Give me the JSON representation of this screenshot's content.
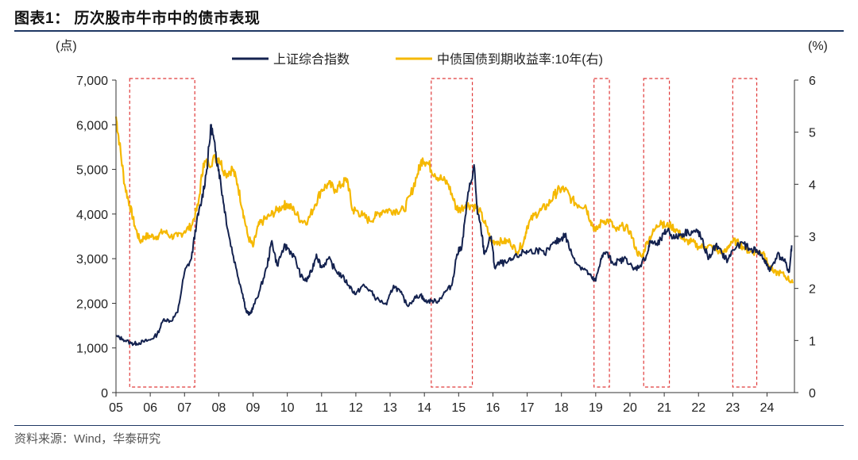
{
  "header": {
    "title": "图表1：  历次股市牛市中的债市表现"
  },
  "footer": {
    "source": "资料来源：Wind，华泰研究"
  },
  "colors": {
    "navy": "#14224f",
    "gold": "#f5b800",
    "box": "#e03a3a",
    "axis": "#333333"
  },
  "chart_data": {
    "type": "line",
    "left_unit_label": "(点)",
    "right_unit_label": "(%)",
    "legend": [
      "上证综合指数",
      "中债国债到期收益率:10年(右)"
    ],
    "x_tick_labels": [
      "05",
      "06",
      "07",
      "08",
      "09",
      "10",
      "11",
      "12",
      "13",
      "14",
      "15",
      "16",
      "17",
      "18",
      "19",
      "20",
      "21",
      "22",
      "23",
      "24"
    ],
    "x_range": [
      2005,
      2024.8
    ],
    "y_left": {
      "min": 0,
      "max": 7000,
      "ticks": [
        0,
        1000,
        2000,
        3000,
        4000,
        5000,
        6000,
        7000
      ],
      "tick_labels": [
        "0",
        "1,000",
        "2,000",
        "3,000",
        "4,000",
        "5,000",
        "6,000",
        "7,000"
      ]
    },
    "y_right": {
      "min": 0,
      "max": 6,
      "ticks": [
        0,
        1,
        2,
        3,
        4,
        5,
        6
      ],
      "tick_labels": [
        "0",
        "1",
        "2",
        "3",
        "4",
        "5",
        "6"
      ]
    },
    "series": [
      {
        "name": "上证综合指数",
        "axis": "left",
        "points": [
          [
            2005.0,
            1260
          ],
          [
            2005.2,
            1200
          ],
          [
            2005.45,
            1100
          ],
          [
            2005.6,
            1100
          ],
          [
            2005.8,
            1140
          ],
          [
            2006.0,
            1180
          ],
          [
            2006.2,
            1300
          ],
          [
            2006.4,
            1650
          ],
          [
            2006.6,
            1600
          ],
          [
            2006.8,
            1800
          ],
          [
            2007.0,
            2700
          ],
          [
            2007.2,
            3000
          ],
          [
            2007.35,
            3800
          ],
          [
            2007.5,
            4300
          ],
          [
            2007.65,
            5000
          ],
          [
            2007.78,
            6000
          ],
          [
            2007.9,
            5400
          ],
          [
            2008.0,
            5000
          ],
          [
            2008.15,
            4200
          ],
          [
            2008.3,
            3500
          ],
          [
            2008.5,
            2800
          ],
          [
            2008.7,
            2200
          ],
          [
            2008.8,
            1820
          ],
          [
            2008.9,
            1750
          ],
          [
            2009.0,
            1900
          ],
          [
            2009.2,
            2300
          ],
          [
            2009.4,
            2800
          ],
          [
            2009.55,
            3400
          ],
          [
            2009.7,
            2850
          ],
          [
            2009.9,
            3250
          ],
          [
            2010.0,
            3250
          ],
          [
            2010.2,
            3050
          ],
          [
            2010.4,
            2600
          ],
          [
            2010.55,
            2500
          ],
          [
            2010.7,
            2700
          ],
          [
            2010.85,
            3100
          ],
          [
            2011.0,
            2800
          ],
          [
            2011.2,
            3000
          ],
          [
            2011.4,
            2750
          ],
          [
            2011.6,
            2600
          ],
          [
            2011.8,
            2400
          ],
          [
            2012.0,
            2200
          ],
          [
            2012.2,
            2400
          ],
          [
            2012.4,
            2300
          ],
          [
            2012.6,
            2100
          ],
          [
            2012.9,
            1970
          ],
          [
            2013.1,
            2400
          ],
          [
            2013.3,
            2250
          ],
          [
            2013.5,
            1950
          ],
          [
            2013.7,
            2100
          ],
          [
            2013.9,
            2200
          ],
          [
            2014.0,
            2050
          ],
          [
            2014.2,
            2050
          ],
          [
            2014.4,
            2050
          ],
          [
            2014.6,
            2250
          ],
          [
            2014.8,
            2400
          ],
          [
            2014.95,
            3100
          ],
          [
            2015.1,
            3300
          ],
          [
            2015.25,
            4300
          ],
          [
            2015.45,
            5100
          ],
          [
            2015.55,
            4000
          ],
          [
            2015.65,
            3700
          ],
          [
            2015.75,
            3100
          ],
          [
            2015.95,
            3500
          ],
          [
            2016.05,
            2800
          ],
          [
            2016.2,
            2900
          ],
          [
            2016.4,
            2900
          ],
          [
            2016.6,
            3000
          ],
          [
            2016.9,
            3150
          ],
          [
            2017.0,
            3150
          ],
          [
            2017.3,
            3200
          ],
          [
            2017.5,
            3100
          ],
          [
            2017.8,
            3350
          ],
          [
            2018.0,
            3450
          ],
          [
            2018.1,
            3550
          ],
          [
            2018.3,
            3100
          ],
          [
            2018.5,
            2850
          ],
          [
            2018.7,
            2750
          ],
          [
            2018.9,
            2550
          ],
          [
            2019.0,
            2500
          ],
          [
            2019.15,
            3000
          ],
          [
            2019.3,
            3150
          ],
          [
            2019.5,
            2900
          ],
          [
            2019.7,
            2950
          ],
          [
            2019.9,
            3000
          ],
          [
            2020.1,
            2750
          ],
          [
            2020.3,
            2850
          ],
          [
            2020.5,
            3100
          ],
          [
            2020.6,
            3400
          ],
          [
            2020.8,
            3300
          ],
          [
            2021.0,
            3550
          ],
          [
            2021.1,
            3650
          ],
          [
            2021.3,
            3450
          ],
          [
            2021.5,
            3550
          ],
          [
            2021.7,
            3600
          ],
          [
            2021.9,
            3600
          ],
          [
            2022.0,
            3600
          ],
          [
            2022.15,
            3300
          ],
          [
            2022.3,
            3000
          ],
          [
            2022.5,
            3300
          ],
          [
            2022.7,
            3100
          ],
          [
            2022.85,
            2950
          ],
          [
            2023.0,
            3200
          ],
          [
            2023.3,
            3350
          ],
          [
            2023.5,
            3200
          ],
          [
            2023.7,
            3200
          ],
          [
            2023.9,
            3000
          ],
          [
            2024.0,
            2850
          ],
          [
            2024.1,
            2750
          ],
          [
            2024.3,
            3100
          ],
          [
            2024.5,
            2950
          ],
          [
            2024.65,
            2700
          ],
          [
            2024.72,
            3300
          ]
        ]
      },
      {
        "name": "中债国债到期收益率:10年(右)",
        "axis": "right",
        "points": [
          [
            2005.0,
            5.3
          ],
          [
            2005.1,
            4.8
          ],
          [
            2005.25,
            4.0
          ],
          [
            2005.4,
            3.6
          ],
          [
            2005.55,
            3.2
          ],
          [
            2005.7,
            2.9
          ],
          [
            2005.85,
            3.0
          ],
          [
            2006.0,
            3.0
          ],
          [
            2006.2,
            3.0
          ],
          [
            2006.4,
            3.1
          ],
          [
            2006.6,
            3.0
          ],
          [
            2006.8,
            3.0
          ],
          [
            2007.0,
            3.1
          ],
          [
            2007.2,
            3.2
          ],
          [
            2007.4,
            3.6
          ],
          [
            2007.55,
            4.4
          ],
          [
            2007.7,
            4.4
          ],
          [
            2007.9,
            4.5
          ],
          [
            2008.0,
            4.5
          ],
          [
            2008.2,
            4.2
          ],
          [
            2008.4,
            4.3
          ],
          [
            2008.55,
            4.0
          ],
          [
            2008.7,
            3.5
          ],
          [
            2008.85,
            3.0
          ],
          [
            2009.0,
            2.8
          ],
          [
            2009.15,
            3.2
          ],
          [
            2009.3,
            3.3
          ],
          [
            2009.5,
            3.4
          ],
          [
            2009.7,
            3.5
          ],
          [
            2009.9,
            3.6
          ],
          [
            2010.0,
            3.6
          ],
          [
            2010.2,
            3.5
          ],
          [
            2010.4,
            3.3
          ],
          [
            2010.6,
            3.3
          ],
          [
            2010.8,
            3.6
          ],
          [
            2011.0,
            3.9
          ],
          [
            2011.2,
            4.0
          ],
          [
            2011.4,
            3.9
          ],
          [
            2011.6,
            4.0
          ],
          [
            2011.75,
            4.1
          ],
          [
            2011.9,
            3.5
          ],
          [
            2012.0,
            3.5
          ],
          [
            2012.2,
            3.4
          ],
          [
            2012.4,
            3.3
          ],
          [
            2012.6,
            3.4
          ],
          [
            2012.8,
            3.5
          ],
          [
            2013.0,
            3.5
          ],
          [
            2013.2,
            3.5
          ],
          [
            2013.4,
            3.5
          ],
          [
            2013.6,
            3.8
          ],
          [
            2013.8,
            4.2
          ],
          [
            2013.95,
            4.5
          ],
          [
            2014.1,
            4.4
          ],
          [
            2014.3,
            4.2
          ],
          [
            2014.5,
            4.1
          ],
          [
            2014.7,
            4.0
          ],
          [
            2014.9,
            3.6
          ],
          [
            2015.0,
            3.5
          ],
          [
            2015.2,
            3.6
          ],
          [
            2015.4,
            3.6
          ],
          [
            2015.6,
            3.5
          ],
          [
            2015.8,
            3.2
          ],
          [
            2015.95,
            2.9
          ],
          [
            2016.1,
            2.9
          ],
          [
            2016.3,
            2.9
          ],
          [
            2016.5,
            2.9
          ],
          [
            2016.7,
            2.7
          ],
          [
            2016.9,
            2.9
          ],
          [
            2017.0,
            3.2
          ],
          [
            2017.2,
            3.4
          ],
          [
            2017.4,
            3.5
          ],
          [
            2017.6,
            3.6
          ],
          [
            2017.8,
            3.8
          ],
          [
            2017.95,
            3.9
          ],
          [
            2018.1,
            3.9
          ],
          [
            2018.3,
            3.7
          ],
          [
            2018.5,
            3.6
          ],
          [
            2018.7,
            3.6
          ],
          [
            2018.85,
            3.3
          ],
          [
            2019.0,
            3.1
          ],
          [
            2019.2,
            3.3
          ],
          [
            2019.4,
            3.3
          ],
          [
            2019.6,
            3.1
          ],
          [
            2019.8,
            3.2
          ],
          [
            2020.0,
            3.1
          ],
          [
            2020.2,
            2.7
          ],
          [
            2020.35,
            2.6
          ],
          [
            2020.5,
            2.9
          ],
          [
            2020.7,
            3.1
          ],
          [
            2020.9,
            3.3
          ],
          [
            2021.0,
            3.2
          ],
          [
            2021.2,
            3.2
          ],
          [
            2021.4,
            3.1
          ],
          [
            2021.6,
            2.9
          ],
          [
            2021.8,
            2.9
          ],
          [
            2022.0,
            2.8
          ],
          [
            2022.2,
            2.8
          ],
          [
            2022.4,
            2.8
          ],
          [
            2022.6,
            2.7
          ],
          [
            2022.8,
            2.7
          ],
          [
            2022.95,
            2.9
          ],
          [
            2023.1,
            2.9
          ],
          [
            2023.3,
            2.8
          ],
          [
            2023.5,
            2.7
          ],
          [
            2023.7,
            2.7
          ],
          [
            2023.9,
            2.7
          ],
          [
            2024.0,
            2.5
          ],
          [
            2024.2,
            2.3
          ],
          [
            2024.4,
            2.3
          ],
          [
            2024.6,
            2.2
          ],
          [
            2024.75,
            2.1
          ]
        ]
      }
    ],
    "highlight_periods": [
      [
        2005.4,
        2007.3
      ],
      [
        2014.2,
        2015.4
      ],
      [
        2018.95,
        2019.4
      ],
      [
        2020.4,
        2021.15
      ],
      [
        2023.0,
        2023.7
      ]
    ]
  }
}
